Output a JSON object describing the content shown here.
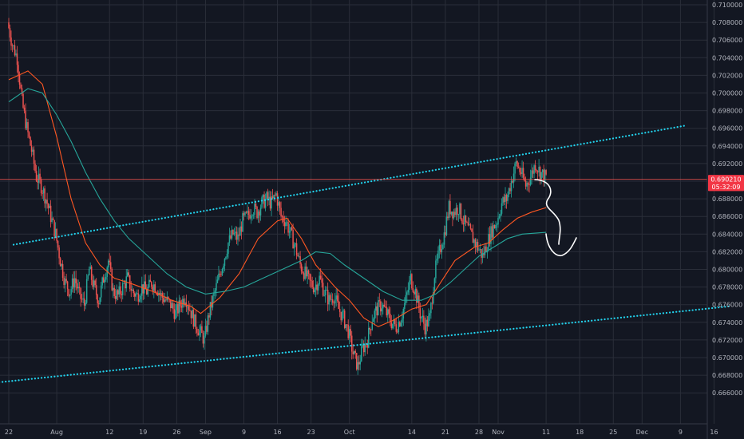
{
  "chart_data": {
    "type": "candlestick",
    "title": "",
    "y_axis": {
      "range": [
        0.6646,
        0.7108
      ],
      "ticks": [
        "0.710000",
        "0.708000",
        "0.706000",
        "0.704000",
        "0.702000",
        "0.700000",
        "0.698000",
        "0.696000",
        "0.694000",
        "0.692000",
        "0.690000",
        "0.688000",
        "0.686000",
        "0.684000",
        "0.682000",
        "0.680000",
        "0.678000",
        "0.676000",
        "0.674000",
        "0.672000",
        "0.670000",
        "0.668000",
        "0.666000"
      ],
      "side": "right"
    },
    "x_axis": {
      "ticks": [
        {
          "label": "22",
          "day": 0
        },
        {
          "label": "Aug",
          "day": 10
        },
        {
          "label": "12",
          "day": 21
        },
        {
          "label": "19",
          "day": 28
        },
        {
          "label": "26",
          "day": 35
        },
        {
          "label": "Sep",
          "day": 41
        },
        {
          "label": "9",
          "day": 49
        },
        {
          "label": "16",
          "day": 56
        },
        {
          "label": "23",
          "day": 63
        },
        {
          "label": "Oct",
          "day": 71
        },
        {
          "label": "14",
          "day": 84
        },
        {
          "label": "21",
          "day": 91
        },
        {
          "label": "28",
          "day": 98
        },
        {
          "label": "Nov",
          "day": 102
        },
        {
          "label": "11",
          "day": 112
        },
        {
          "label": "18",
          "day": 119
        },
        {
          "label": "25",
          "day": 126
        },
        {
          "label": "Dec",
          "day": 132
        },
        {
          "label": "9",
          "day": 140
        },
        {
          "label": "16",
          "day": 147
        }
      ]
    },
    "price_path": [
      [
        0,
        0.708
      ],
      [
        1,
        0.7055
      ],
      [
        2,
        0.704
      ],
      [
        3,
        0.699
      ],
      [
        4,
        0.696
      ],
      [
        5,
        0.6935
      ],
      [
        6,
        0.6905
      ],
      [
        7,
        0.6895
      ],
      [
        8,
        0.688
      ],
      [
        9,
        0.686
      ],
      [
        10,
        0.684
      ],
      [
        11,
        0.681
      ],
      [
        12,
        0.6785
      ],
      [
        13,
        0.6775
      ],
      [
        14,
        0.679
      ],
      [
        15,
        0.677
      ],
      [
        16,
        0.676
      ],
      [
        17,
        0.68
      ],
      [
        18,
        0.678
      ],
      [
        19,
        0.6765
      ],
      [
        20,
        0.679
      ],
      [
        21,
        0.681
      ],
      [
        22,
        0.6775
      ],
      [
        23,
        0.677
      ],
      [
        24,
        0.678
      ],
      [
        25,
        0.679
      ],
      [
        26,
        0.6775
      ],
      [
        27,
        0.677
      ],
      [
        28,
        0.678
      ],
      [
        29,
        0.6775
      ],
      [
        30,
        0.6785
      ],
      [
        31,
        0.678
      ],
      [
        32,
        0.677
      ],
      [
        33,
        0.6765
      ],
      [
        34,
        0.676
      ],
      [
        35,
        0.675
      ],
      [
        36,
        0.676
      ],
      [
        37,
        0.677
      ],
      [
        38,
        0.6755
      ],
      [
        39,
        0.674
      ],
      [
        40,
        0.673
      ],
      [
        41,
        0.672
      ],
      [
        42,
        0.675
      ],
      [
        43,
        0.677
      ],
      [
        44,
        0.679
      ],
      [
        45,
        0.681
      ],
      [
        46,
        0.683
      ],
      [
        47,
        0.684
      ],
      [
        48,
        0.6835
      ],
      [
        49,
        0.6855
      ],
      [
        50,
        0.686
      ],
      [
        51,
        0.687
      ],
      [
        52,
        0.6865
      ],
      [
        53,
        0.6875
      ],
      [
        54,
        0.688
      ],
      [
        55,
        0.6875
      ],
      [
        56,
        0.6885
      ],
      [
        57,
        0.686
      ],
      [
        58,
        0.6855
      ],
      [
        59,
        0.684
      ],
      [
        60,
        0.6825
      ],
      [
        61,
        0.6805
      ],
      [
        62,
        0.6795
      ],
      [
        63,
        0.6785
      ],
      [
        64,
        0.678
      ],
      [
        65,
        0.679
      ],
      [
        66,
        0.6775
      ],
      [
        67,
        0.6765
      ],
      [
        68,
        0.677
      ],
      [
        69,
        0.6755
      ],
      [
        70,
        0.6745
      ],
      [
        71,
        0.673
      ],
      [
        72,
        0.6705
      ],
      [
        73,
        0.669
      ],
      [
        74,
        0.671
      ],
      [
        75,
        0.672
      ],
      [
        76,
        0.6745
      ],
      [
        77,
        0.6755
      ],
      [
        78,
        0.676
      ],
      [
        79,
        0.675
      ],
      [
        80,
        0.674
      ],
      [
        81,
        0.6735
      ],
      [
        82,
        0.6745
      ],
      [
        83,
        0.6765
      ],
      [
        84,
        0.679
      ],
      [
        85,
        0.6775
      ],
      [
        86,
        0.675
      ],
      [
        87,
        0.6735
      ],
      [
        88,
        0.6745
      ],
      [
        89,
        0.6795
      ],
      [
        90,
        0.682
      ],
      [
        91,
        0.684
      ],
      [
        92,
        0.687
      ],
      [
        93,
        0.6865
      ],
      [
        94,
        0.687
      ],
      [
        95,
        0.6855
      ],
      [
        96,
        0.6845
      ],
      [
        97,
        0.6835
      ],
      [
        98,
        0.6825
      ],
      [
        99,
        0.6815
      ],
      [
        100,
        0.683
      ],
      [
        101,
        0.6845
      ],
      [
        102,
        0.6855
      ],
      [
        103,
        0.6875
      ],
      [
        104,
        0.688
      ],
      [
        105,
        0.69
      ],
      [
        106,
        0.692
      ],
      [
        107,
        0.691
      ],
      [
        108,
        0.6895
      ],
      [
        109,
        0.6905
      ],
      [
        110,
        0.692
      ],
      [
        111,
        0.691
      ],
      [
        112,
        0.6905
      ]
    ],
    "series": [
      {
        "name": "",
        "color": "#ff5722",
        "values": [
          [
            0,
            0.7015
          ],
          [
            4,
            0.7025
          ],
          [
            7,
            0.701
          ],
          [
            10,
            0.695
          ],
          [
            13,
            0.688
          ],
          [
            16,
            0.683
          ],
          [
            19,
            0.6805
          ],
          [
            22,
            0.679
          ],
          [
            26,
            0.6783
          ],
          [
            30,
            0.6775
          ],
          [
            34,
            0.6765
          ],
          [
            38,
            0.6758
          ],
          [
            40,
            0.675
          ],
          [
            44,
            0.6768
          ],
          [
            48,
            0.6795
          ],
          [
            52,
            0.6835
          ],
          [
            56,
            0.6855
          ],
          [
            58,
            0.6858
          ],
          [
            61,
            0.6835
          ],
          [
            64,
            0.6805
          ],
          [
            68,
            0.678
          ],
          [
            71,
            0.6765
          ],
          [
            74,
            0.6745
          ],
          [
            77,
            0.6735
          ],
          [
            80,
            0.6742
          ],
          [
            84,
            0.6755
          ],
          [
            87,
            0.676
          ],
          [
            90,
            0.6785
          ],
          [
            93,
            0.681
          ],
          [
            97,
            0.6825
          ],
          [
            100,
            0.683
          ],
          [
            103,
            0.6845
          ],
          [
            106,
            0.6858
          ],
          [
            109,
            0.6865
          ],
          [
            112,
            0.687
          ]
        ]
      },
      {
        "name": "",
        "color": "#26a69a",
        "values": [
          [
            0,
            0.699
          ],
          [
            4,
            0.7005
          ],
          [
            7,
            0.7
          ],
          [
            10,
            0.6975
          ],
          [
            13,
            0.6945
          ],
          [
            16,
            0.691
          ],
          [
            19,
            0.688
          ],
          [
            22,
            0.6855
          ],
          [
            25,
            0.6835
          ],
          [
            29,
            0.6815
          ],
          [
            33,
            0.6795
          ],
          [
            37,
            0.678
          ],
          [
            41,
            0.6772
          ],
          [
            45,
            0.6775
          ],
          [
            49,
            0.678
          ],
          [
            53,
            0.679
          ],
          [
            57,
            0.68
          ],
          [
            61,
            0.681
          ],
          [
            64,
            0.682
          ],
          [
            67,
            0.6818
          ],
          [
            70,
            0.6805
          ],
          [
            74,
            0.679
          ],
          [
            78,
            0.6775
          ],
          [
            82,
            0.6765
          ],
          [
            86,
            0.6765
          ],
          [
            89,
            0.6772
          ],
          [
            92,
            0.6785
          ],
          [
            95,
            0.68
          ],
          [
            98,
            0.6815
          ],
          [
            101,
            0.6825
          ],
          [
            104,
            0.6835
          ],
          [
            107,
            0.684
          ],
          [
            112,
            0.6842
          ]
        ]
      }
    ],
    "trendlines": [
      {
        "from": [
          1,
          0.6828
        ],
        "to": [
          141,
          0.6963
        ],
        "color": "#22d3ee",
        "style": "dotted"
      },
      {
        "from": [
          -2,
          0.6672
        ],
        "to": [
          150,
          0.6758
        ],
        "color": "#22d3ee",
        "style": "dotted"
      }
    ],
    "horizontal_line": {
      "value": 0.69021,
      "color": "#ef5350"
    },
    "price_labels": [
      {
        "text": "0.690210",
        "value": 0.69021,
        "color": "#f23645"
      },
      {
        "text": "05:32:09",
        "value": 0.68938,
        "color": "#f23645"
      }
    ],
    "annotation": {
      "type": "hand-drawn-arrow",
      "direction": "down",
      "color": "#ffffff"
    },
    "colors": {
      "background": "#131722",
      "grid": "#2a2e39",
      "up": "#26a69a",
      "down": "#ef5350",
      "text": "#b2b5be"
    },
    "grid": true,
    "legend": "none"
  }
}
